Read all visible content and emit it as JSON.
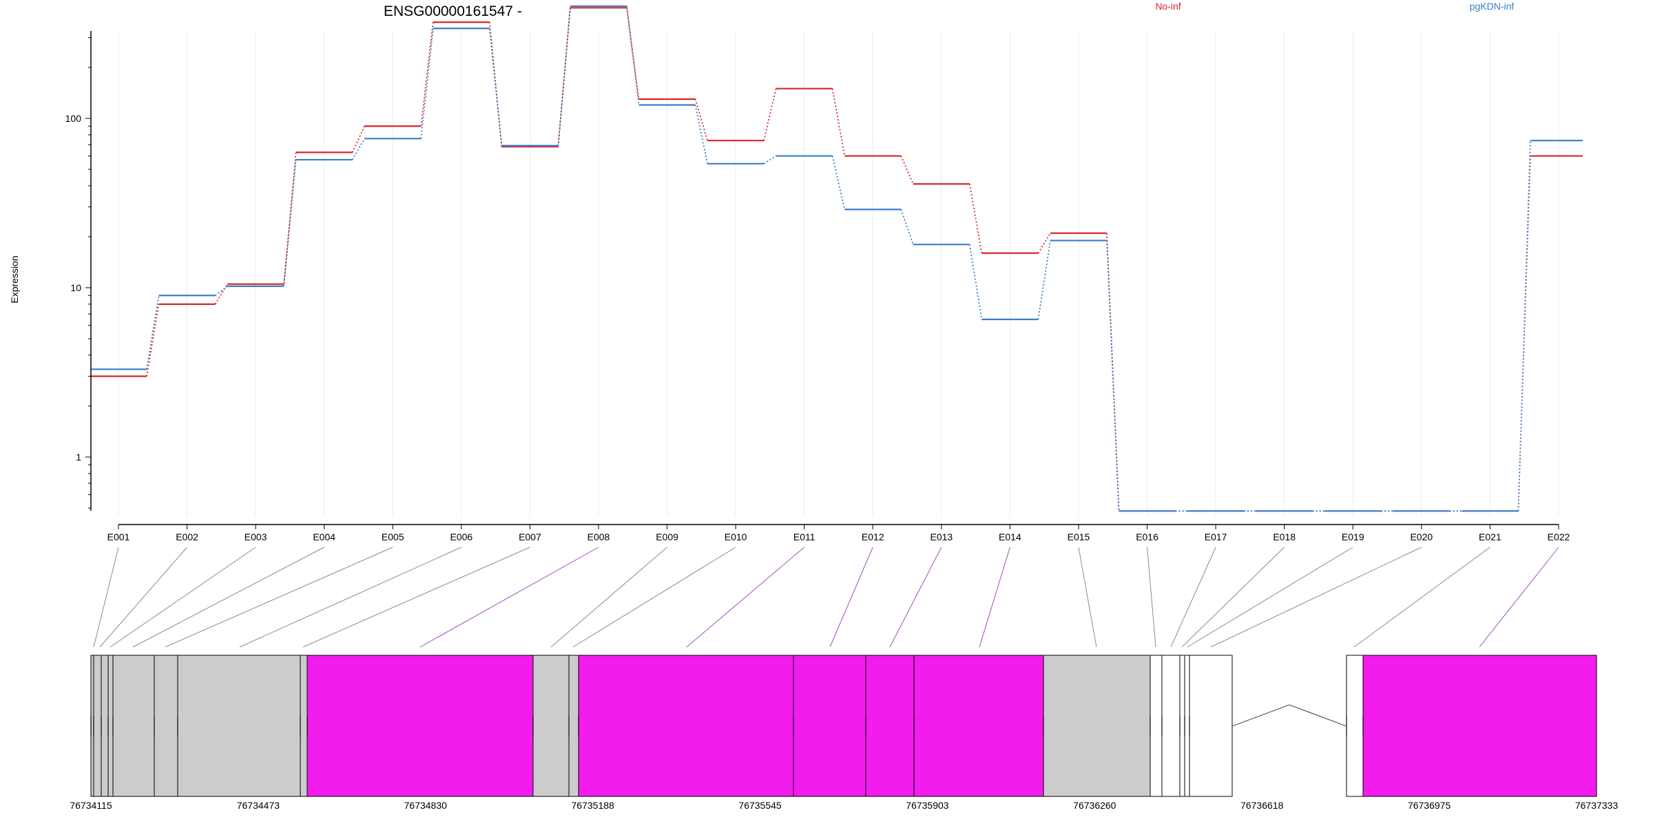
{
  "chart_data": {
    "type": "line",
    "title": "ENSG00000161547 -",
    "xlabel": "",
    "ylabel": "Expression",
    "y_scale": "log",
    "y_ticks": [
      1,
      10,
      100
    ],
    "y_tick_labels": [
      "1",
      "10",
      "100"
    ],
    "grid": "vertical-only",
    "legend_placement": "top",
    "categories": [
      "E001",
      "E002",
      "E003",
      "E004",
      "E005",
      "E006",
      "E007",
      "E008",
      "E009",
      "E010",
      "E011",
      "E012",
      "E013",
      "E014",
      "E015",
      "E016",
      "E017",
      "E018",
      "E019",
      "E020",
      "E021",
      "E022"
    ],
    "series": [
      {
        "name": "No-inf",
        "color": "#d62728",
        "values": [
          3.0,
          8.0,
          10.5,
          63,
          90,
          370,
          68,
          450,
          130,
          74,
          150,
          60,
          41,
          16,
          21,
          0.48,
          0.48,
          0.48,
          0.48,
          0.48,
          0.48,
          60
        ]
      },
      {
        "name": "pgKDN-inf",
        "color": "#3a7dc9",
        "values": [
          3.3,
          9.0,
          10.2,
          57,
          76,
          340,
          69,
          460,
          120,
          54,
          60,
          29,
          18,
          6.5,
          19,
          0.48,
          0.48,
          0.48,
          0.48,
          0.48,
          0.48,
          74
        ]
      }
    ],
    "gene_model": {
      "coordinate_ticks": [
        "76734115",
        "76734473",
        "76734830",
        "76735188",
        "76735545",
        "76735903",
        "76736260",
        "76736618",
        "76736975",
        "76737333"
      ],
      "exon_fill_colors": {
        "gray": "#cccccc",
        "magenta": "#f21ced",
        "white": "#ffffff"
      }
    }
  }
}
